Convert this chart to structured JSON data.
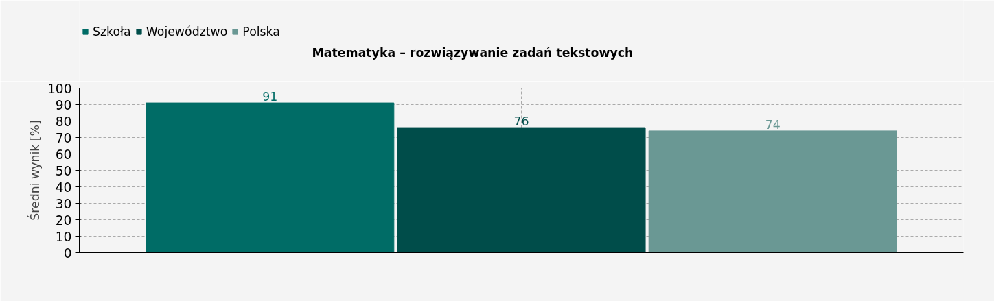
{
  "chart_data": {
    "type": "bar",
    "title": "Matematyka – rozwiązywanie zadań tekstowych",
    "ylabel": "Średni wynik [%]",
    "categories": [
      null
    ],
    "series": [
      {
        "name": "Szkoła",
        "color": "#006c66",
        "values": [
          91
        ]
      },
      {
        "name": "Województwo",
        "color": "#004d4a",
        "values": [
          76
        ]
      },
      {
        "name": "Polska",
        "color": "#6a9894",
        "values": [
          74
        ]
      }
    ],
    "ylim": [
      0,
      100
    ],
    "yticks": [
      0,
      10,
      20,
      30,
      40,
      50,
      60,
      70,
      80,
      90,
      100
    ],
    "grid": true,
    "legend": "top left",
    "data_labels": true
  }
}
